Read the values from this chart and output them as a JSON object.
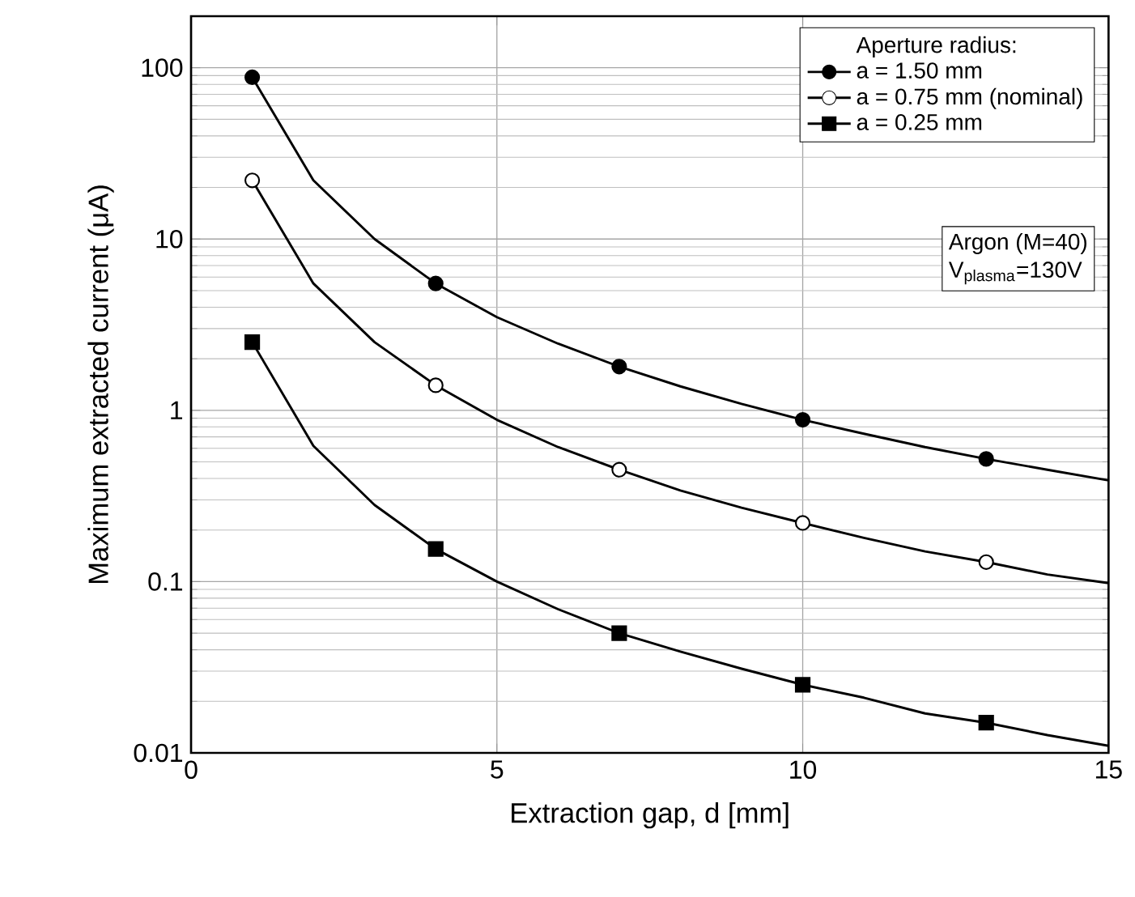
{
  "chart_data": {
    "type": "line",
    "xlabel": "Extraction gap, d [mm]",
    "ylabel": "Maximum extracted current (μA)",
    "legend_title": "Aperture radius:",
    "legend": "top right",
    "grid": true,
    "log": "y",
    "xlim": [
      0,
      15
    ],
    "xticks": [
      0,
      5,
      10,
      15
    ],
    "ylim": [
      0.01,
      200
    ],
    "yticks": [
      0.01,
      0.1,
      1,
      10,
      100
    ],
    "annotations": [
      "Argon (M=40)",
      "V$_{plasma}$=130V"
    ],
    "series": [
      {
        "color": "#000000",
        "x": [
          1,
          2,
          3,
          4,
          5,
          6,
          7,
          8,
          9,
          10,
          11,
          12,
          13,
          14,
          15
        ],
        "values": [
          88,
          22,
          10,
          5.5,
          3.5,
          2.45,
          1.8,
          1.38,
          1.09,
          0.88,
          0.73,
          0.61,
          0.52,
          0.45,
          0.39
        ]
      },
      {
        "color": "#000000",
        "x": [
          1,
          2,
          3,
          4,
          5,
          6,
          7,
          8,
          9,
          10,
          11,
          12,
          13,
          14,
          15
        ],
        "values": [
          22,
          5.5,
          2.5,
          1.4,
          0.88,
          0.61,
          0.45,
          0.34,
          0.27,
          0.22,
          0.18,
          0.15,
          0.13,
          0.11,
          0.098
        ]
      },
      {
        "color": "#000000",
        "x": [
          1,
          2,
          3,
          4,
          5,
          6,
          7,
          8,
          9,
          10,
          11,
          12,
          13,
          14,
          15
        ],
        "values": [
          2.5,
          0.62,
          0.28,
          0.155,
          0.1,
          0.069,
          0.05,
          0.039,
          0.031,
          0.025,
          0.021,
          0.017,
          0.015,
          0.0127,
          0.011
        ]
      },
      {
        "type": "scatter",
        "name": "a = 1.50 mm",
        "color": "#000000",
        "marker": "circle",
        "x": [
          1,
          4,
          7,
          10,
          13
        ],
        "values": [
          88,
          5.5,
          1.8,
          0.88,
          0.52
        ]
      },
      {
        "type": "scatter",
        "name": "a = 0.75 mm (nominal)",
        "color": "#ffffff",
        "marker": "circle",
        "x": [
          1,
          4,
          7,
          10,
          13
        ],
        "values": [
          22,
          1.4,
          0.45,
          0.22,
          0.13
        ]
      },
      {
        "type": "scatter",
        "name": "a = 0.25 mm",
        "color": "#000000",
        "marker": "square",
        "x": [
          1,
          4,
          7,
          10,
          13
        ],
        "values": [
          2.5,
          0.155,
          0.05,
          0.025,
          0.015
        ]
      }
    ]
  }
}
